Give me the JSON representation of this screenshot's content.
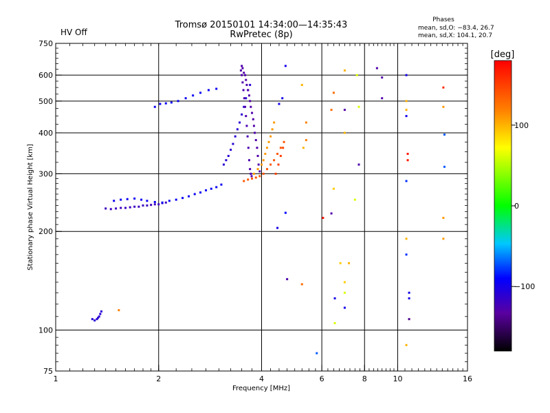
{
  "header": {
    "status_label": "HV Off",
    "status_color": "#e01010",
    "title_line1": "Tromsø 20150101 14:34:00—14:35:43",
    "title_line2": "RwPretec (8p)",
    "phases_title": "Phases",
    "phases_o": "mean, sd,O: −83.4, 26.7",
    "phases_x": "mean, sd,X: 104.1, 20.7"
  },
  "chart_data": {
    "type": "scatter",
    "x_scale": "log2",
    "y_scale": "log",
    "xlabel": "Frequency [MHz]",
    "ylabel": "Stationary phase Virtual Height [km]",
    "xlim": [
      1,
      16
    ],
    "ylim": [
      75,
      750
    ],
    "x_ticks": [
      1,
      2,
      4,
      6,
      8,
      10,
      16
    ],
    "y_ticks": [
      75,
      100,
      200,
      300,
      400,
      500,
      600,
      750
    ],
    "grid": true,
    "colorbar": {
      "label": "[deg]",
      "range": [
        -180,
        180
      ],
      "ticks": [
        100,
        0,
        -100
      ],
      "colormap": "rainbow"
    },
    "series": [
      {
        "phase": -110,
        "points": [
          [
            1.28,
            108
          ],
          [
            1.3,
            107
          ],
          [
            1.32,
            108
          ],
          [
            1.33,
            109
          ],
          [
            1.34,
            110
          ],
          [
            1.35,
            112
          ],
          [
            1.36,
            114
          ]
        ]
      },
      {
        "phase": 120,
        "points": [
          [
            1.53,
            115
          ]
        ]
      },
      {
        "phase": -120,
        "points": [
          [
            1.4,
            235
          ],
          [
            1.45,
            234
          ],
          [
            1.5,
            235
          ],
          [
            1.55,
            236
          ],
          [
            1.6,
            236
          ],
          [
            1.65,
            237
          ],
          [
            1.7,
            238
          ],
          [
            1.75,
            238
          ],
          [
            1.8,
            240
          ],
          [
            1.85,
            240
          ],
          [
            1.9,
            241
          ],
          [
            1.95,
            242
          ],
          [
            2.0,
            242
          ],
          [
            2.05,
            244
          ],
          [
            2.1,
            245
          ]
        ]
      },
      {
        "phase": -95,
        "points": [
          [
            1.48,
            248
          ],
          [
            1.55,
            250
          ],
          [
            1.62,
            251
          ],
          [
            1.7,
            252
          ],
          [
            1.78,
            250
          ],
          [
            1.85,
            248
          ],
          [
            1.95,
            246
          ],
          [
            2.05,
            245
          ],
          [
            2.15,
            248
          ],
          [
            2.25,
            250
          ],
          [
            2.35,
            253
          ],
          [
            2.45,
            256
          ],
          [
            2.55,
            260
          ],
          [
            2.65,
            263
          ],
          [
            2.75,
            267
          ],
          [
            2.85,
            270
          ],
          [
            2.95,
            273
          ],
          [
            3.05,
            278
          ]
        ]
      },
      {
        "phase": -95,
        "points": [
          [
            1.95,
            480
          ],
          [
            2.02,
            490
          ],
          [
            2.1,
            492
          ],
          [
            2.18,
            495
          ],
          [
            2.28,
            500
          ],
          [
            2.4,
            510
          ],
          [
            2.52,
            520
          ],
          [
            2.65,
            530
          ],
          [
            2.8,
            540
          ],
          [
            2.95,
            545
          ]
        ]
      },
      {
        "phase": -110,
        "points": [
          [
            3.1,
            320
          ],
          [
            3.15,
            330
          ],
          [
            3.2,
            340
          ],
          [
            3.25,
            355
          ],
          [
            3.3,
            370
          ],
          [
            3.35,
            390
          ],
          [
            3.4,
            410
          ],
          [
            3.45,
            430
          ],
          [
            3.5,
            455
          ],
          [
            3.55,
            480
          ],
          [
            3.6,
            510
          ],
          [
            3.65,
            540
          ],
          [
            3.7,
            560
          ]
        ]
      },
      {
        "phase": -130,
        "points": [
          [
            3.48,
            620
          ],
          [
            3.5,
            640
          ],
          [
            3.52,
            630
          ],
          [
            3.55,
            610
          ],
          [
            3.58,
            600
          ],
          [
            3.6,
            580
          ],
          [
            3.62,
            560
          ],
          [
            3.65,
            540
          ],
          [
            3.68,
            520
          ],
          [
            3.7,
            500
          ],
          [
            3.72,
            480
          ],
          [
            3.75,
            460
          ],
          [
            3.78,
            440
          ],
          [
            3.8,
            420
          ],
          [
            3.82,
            400
          ],
          [
            3.85,
            380
          ],
          [
            3.88,
            360
          ],
          [
            3.9,
            340
          ],
          [
            3.92,
            320
          ],
          [
            3.95,
            305
          ]
        ]
      },
      {
        "phase": -128,
        "points": [
          [
            3.5,
            600
          ],
          [
            3.52,
            570
          ],
          [
            3.54,
            540
          ],
          [
            3.56,
            510
          ],
          [
            3.58,
            480
          ],
          [
            3.6,
            450
          ],
          [
            3.62,
            420
          ],
          [
            3.64,
            390
          ],
          [
            3.66,
            360
          ],
          [
            3.68,
            330
          ],
          [
            3.7,
            310
          ],
          [
            3.72,
            300
          ],
          [
            3.74,
            295
          ]
        ]
      },
      {
        "phase": 140,
        "points": [
          [
            3.55,
            285
          ],
          [
            3.65,
            288
          ],
          [
            3.75,
            290
          ],
          [
            3.85,
            292
          ],
          [
            3.95,
            295
          ],
          [
            4.05,
            300
          ],
          [
            4.15,
            310
          ],
          [
            4.25,
            320
          ],
          [
            4.35,
            330
          ],
          [
            4.45,
            345
          ],
          [
            4.55,
            360
          ],
          [
            4.65,
            375
          ]
        ]
      },
      {
        "phase": 110,
        "points": [
          [
            3.8,
            300
          ],
          [
            3.9,
            310
          ],
          [
            4.0,
            320
          ],
          [
            4.05,
            330
          ],
          [
            4.1,
            345
          ],
          [
            4.15,
            360
          ],
          [
            4.2,
            375
          ],
          [
            4.25,
            390
          ],
          [
            4.3,
            410
          ],
          [
            4.35,
            430
          ]
        ]
      },
      {
        "phase": -100,
        "points": [
          [
            4.5,
            490
          ],
          [
            4.6,
            510
          ],
          [
            4.7,
            640
          ]
        ]
      },
      {
        "phase": 150,
        "points": [
          [
            4.4,
            300
          ],
          [
            4.48,
            320
          ],
          [
            4.55,
            340
          ],
          [
            4.62,
            360
          ]
        ]
      },
      {
        "phase": -100,
        "points": [
          [
            4.45,
            205
          ]
        ]
      },
      {
        "phase": -130,
        "points": [
          [
            4.75,
            143
          ]
        ]
      },
      {
        "phase": 130,
        "points": [
          [
            5.25,
            138
          ]
        ]
      },
      {
        "phase": -90,
        "points": [
          [
            4.7,
            228
          ]
        ]
      },
      {
        "phase": 100,
        "points": [
          [
            5.25,
            560
          ],
          [
            5.3,
            360
          ]
        ]
      },
      {
        "phase": 120,
        "points": [
          [
            5.4,
            380
          ],
          [
            5.4,
            430
          ]
        ]
      },
      {
        "phase": -70,
        "points": [
          [
            5.8,
            85
          ]
        ]
      },
      {
        "phase": 170,
        "points": [
          [
            6.05,
            220
          ]
        ]
      },
      {
        "phase": -130,
        "points": [
          [
            6.4,
            227
          ]
        ]
      },
      {
        "phase": 130,
        "points": [
          [
            6.4,
            470
          ],
          [
            6.5,
            530
          ]
        ]
      },
      {
        "phase": 90,
        "points": [
          [
            6.5,
            270
          ],
          [
            6.8,
            160
          ],
          [
            7.0,
            140
          ]
        ]
      },
      {
        "phase": -100,
        "points": [
          [
            6.55,
            125
          ],
          [
            7.0,
            117
          ]
        ]
      },
      {
        "phase": 100,
        "points": [
          [
            7.0,
            620
          ],
          [
            7.0,
            400
          ],
          [
            7.2,
            160
          ]
        ]
      },
      {
        "phase": 60,
        "points": [
          [
            6.55,
            105
          ],
          [
            7.0,
            130
          ],
          [
            7.5,
            250
          ]
        ]
      },
      {
        "phase": -130,
        "points": [
          [
            7.0,
            470
          ],
          [
            7.7,
            320
          ],
          [
            8.7,
            630
          ]
        ]
      },
      {
        "phase": 60,
        "points": [
          [
            7.6,
            600
          ],
          [
            7.7,
            480
          ]
        ]
      },
      {
        "phase": -130,
        "points": [
          [
            9.0,
            590
          ],
          [
            9.0,
            510
          ]
        ]
      },
      {
        "phase": -100,
        "points": [
          [
            10.6,
            600
          ],
          [
            10.6,
            450
          ],
          [
            10.8,
            130
          ],
          [
            10.8,
            125
          ]
        ]
      },
      {
        "phase": 100,
        "points": [
          [
            10.6,
            500
          ],
          [
            10.6,
            470
          ],
          [
            10.6,
            190
          ],
          [
            10.6,
            90
          ]
        ]
      },
      {
        "phase": 170,
        "points": [
          [
            10.7,
            345
          ],
          [
            10.7,
            330
          ]
        ]
      },
      {
        "phase": -80,
        "points": [
          [
            10.6,
            285
          ],
          [
            10.6,
            170
          ]
        ]
      },
      {
        "phase": -140,
        "points": [
          [
            10.8,
            108
          ]
        ]
      },
      {
        "phase": 110,
        "points": [
          [
            13.6,
            480
          ],
          [
            13.6,
            220
          ],
          [
            13.6,
            190
          ]
        ]
      },
      {
        "phase": 160,
        "points": [
          [
            13.6,
            550
          ]
        ]
      },
      {
        "phase": -70,
        "points": [
          [
            13.7,
            395
          ],
          [
            13.7,
            315
          ]
        ]
      }
    ]
  }
}
